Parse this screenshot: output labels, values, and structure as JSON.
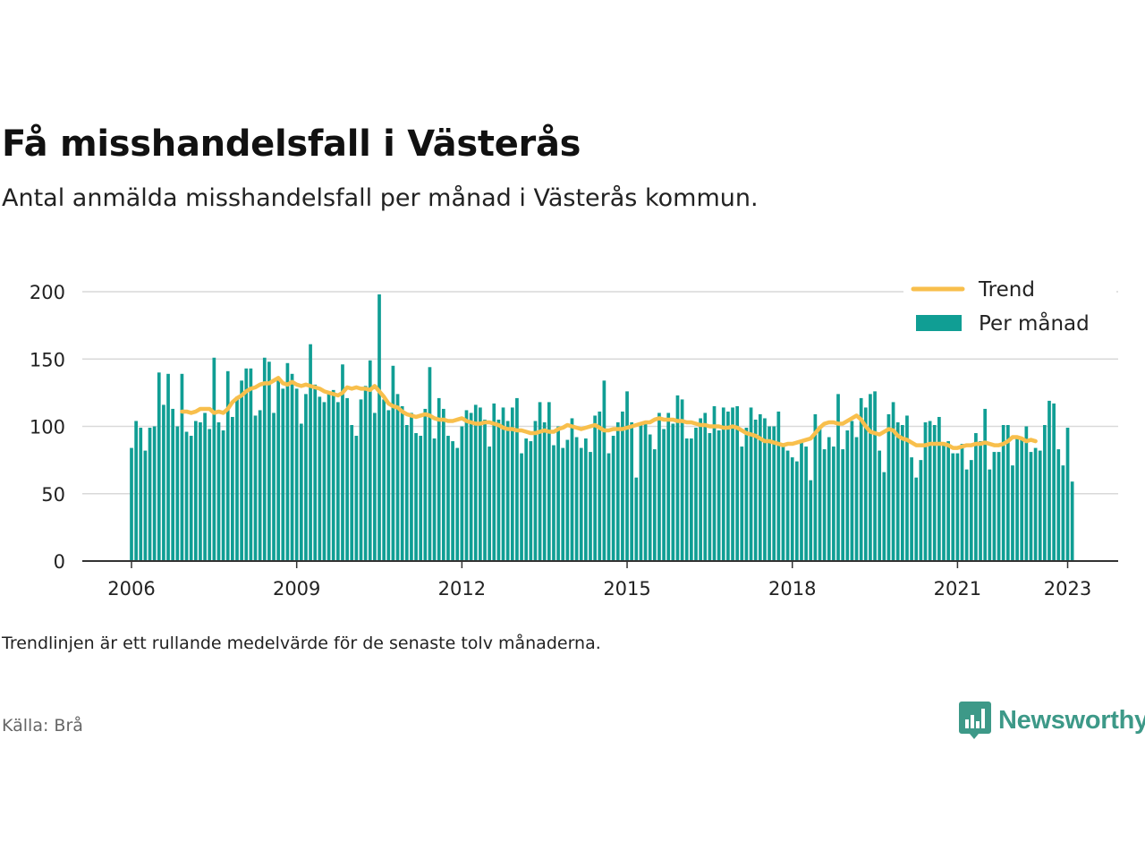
{
  "header": {
    "title": "Få misshandelsfall i Västerås",
    "subtitle": "Antal anmälda misshandelsfall per månad i Västerås kommun."
  },
  "footer": {
    "note": "Trendlinjen är ett rullande medelvärde för de senaste tolv månaderna.",
    "source": "Källa: Brå",
    "brand": "Newsworthy"
  },
  "colors": {
    "bars": "#109e94",
    "trend": "#f8bf4c",
    "grid": "#d9d9d9",
    "axis": "#333333",
    "brand": "#3d9988"
  },
  "icons": {
    "brand_logo": "bar-chart-speech-bubble-icon"
  },
  "chart_data": {
    "type": "bar",
    "xlabel": "",
    "ylabel": "",
    "ylim": [
      0,
      200
    ],
    "yticks": [
      0,
      50,
      100,
      150,
      200
    ],
    "xticks": [
      "2006",
      "2009",
      "2012",
      "2015",
      "2018",
      "2021",
      "2023"
    ],
    "start": "2006-01",
    "grid": true,
    "legend": "top-right",
    "series": [
      {
        "name": "Per månad",
        "type": "bar",
        "values": [
          84,
          104,
          99,
          82,
          99,
          100,
          140,
          116,
          139,
          113,
          100,
          139,
          96,
          93,
          104,
          103,
          110,
          98,
          151,
          103,
          97,
          141,
          107,
          122,
          134,
          143,
          143,
          108,
          112,
          151,
          148,
          110,
          135,
          128,
          147,
          139,
          128,
          102,
          124,
          161,
          131,
          122,
          118,
          125,
          127,
          118,
          146,
          121,
          101,
          93,
          120,
          130,
          149,
          110,
          198,
          120,
          112,
          145,
          124,
          115,
          101,
          110,
          95,
          93,
          113,
          144,
          91,
          121,
          113,
          93,
          89,
          84,
          100,
          112,
          110,
          116,
          114,
          105,
          85,
          117,
          105,
          114,
          104,
          114,
          121,
          80,
          91,
          89,
          104,
          118,
          103,
          118,
          86,
          100,
          84,
          90,
          106,
          92,
          84,
          91,
          81,
          108,
          111,
          134,
          80,
          93,
          103,
          111,
          126,
          103,
          62,
          101,
          103,
          94,
          83,
          110,
          98,
          110,
          102,
          123,
          120,
          91,
          91,
          99,
          106,
          110,
          95,
          115,
          97,
          114,
          111,
          114,
          115,
          85,
          99,
          114,
          105,
          109,
          106,
          100,
          100,
          111,
          87,
          82,
          77,
          74,
          90,
          85,
          60,
          109,
          98,
          83,
          92,
          85,
          124,
          83,
          97,
          104,
          92,
          121,
          114,
          124,
          126,
          82,
          66,
          109,
          118,
          103,
          101,
          108,
          77,
          62,
          75,
          103,
          104,
          101,
          107,
          88,
          89,
          80,
          80,
          87,
          68,
          75,
          95,
          89,
          113,
          68,
          81,
          81,
          101,
          101,
          71,
          91,
          91,
          100,
          81,
          84,
          82,
          101,
          119,
          117,
          83,
          71,
          99,
          59
        ]
      },
      {
        "name": "Trend",
        "type": "line",
        "start": "2006-12",
        "values": [
          111,
          111,
          110,
          111,
          113,
          113,
          113,
          110,
          111,
          110,
          113,
          118,
          121,
          123,
          126,
          128,
          129,
          131,
          132,
          132,
          134,
          136,
          132,
          131,
          133,
          131,
          130,
          131,
          130,
          129,
          128,
          126,
          125,
          124,
          123,
          125,
          129,
          128,
          129,
          128,
          128,
          127,
          130,
          126,
          122,
          117,
          115,
          114,
          111,
          109,
          108,
          107,
          108,
          109,
          108,
          106,
          105,
          105,
          104,
          104,
          105,
          106,
          104,
          103,
          102,
          102,
          103,
          103,
          102,
          101,
          99,
          98,
          98,
          97,
          97,
          96,
          95,
          95,
          96,
          97,
          96,
          96,
          98,
          99,
          101,
          100,
          99,
          98,
          99,
          100,
          101,
          99,
          97,
          97,
          98,
          98,
          98,
          99,
          100,
          101,
          102,
          103,
          103,
          105,
          106,
          105,
          105,
          105,
          104,
          104,
          103,
          103,
          102,
          101,
          101,
          100,
          100,
          100,
          99,
          99,
          100,
          99,
          97,
          95,
          94,
          93,
          91,
          89,
          89,
          88,
          87,
          86,
          87,
          87,
          88,
          89,
          90,
          91,
          95,
          99,
          102,
          103,
          103,
          102,
          102,
          104,
          106,
          108,
          105,
          100,
          96,
          95,
          94,
          96,
          98,
          97,
          93,
          91,
          90,
          88,
          86,
          86,
          86,
          87,
          87,
          87,
          87,
          86,
          84,
          84,
          85,
          86,
          86,
          87,
          87,
          88,
          87,
          86,
          86,
          87,
          89,
          92,
          92,
          91,
          89,
          90,
          89
        ]
      }
    ]
  }
}
